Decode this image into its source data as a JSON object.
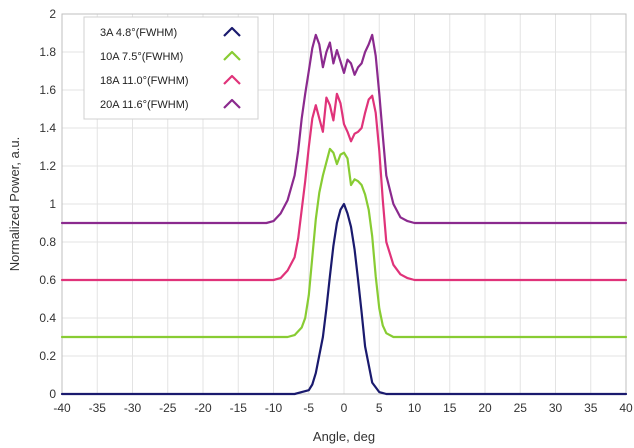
{
  "chart_data": {
    "type": "line",
    "title": "",
    "xlabel": "Angle, deg",
    "ylabel": "Normalized Power, a.u.",
    "xlim": [
      -40,
      40
    ],
    "ylim": [
      0,
      2
    ],
    "xticks": [
      -40,
      -35,
      -30,
      -25,
      -20,
      -15,
      -10,
      -5,
      0,
      5,
      10,
      15,
      20,
      25,
      30,
      35,
      40
    ],
    "yticks": [
      0,
      0.2,
      0.4,
      0.6,
      0.8,
      1,
      1.2,
      1.4,
      1.6,
      1.8,
      2
    ],
    "grid": true,
    "legend_position": "top-left",
    "series": [
      {
        "name": "3A 4.8°(FWHM)",
        "color": "#1a1a6e",
        "x": [
          -40,
          -7,
          -6,
          -5,
          -4.5,
          -4,
          -3,
          -2.5,
          -2,
          -1.5,
          -1,
          -0.5,
          0,
          0.5,
          1,
          1.5,
          2,
          2.5,
          3,
          4,
          5,
          6,
          40
        ],
        "y": [
          0.0,
          0.0,
          0.01,
          0.02,
          0.05,
          0.11,
          0.3,
          0.45,
          0.62,
          0.78,
          0.9,
          0.97,
          1.0,
          0.95,
          0.88,
          0.76,
          0.6,
          0.43,
          0.25,
          0.06,
          0.01,
          0.0,
          0.0
        ]
      },
      {
        "name": "10A 7.5°(FWHM)",
        "color": "#88cc33",
        "x": [
          -40,
          -8,
          -7,
          -6,
          -5.5,
          -5,
          -4.5,
          -4,
          -3.5,
          -3,
          -2.5,
          -2,
          -1.5,
          -1,
          -0.5,
          0,
          0.5,
          1,
          1.5,
          2,
          2.5,
          3,
          3.5,
          4,
          4.5,
          5,
          5.5,
          6,
          7,
          8,
          40
        ],
        "y": [
          0.3,
          0.3,
          0.31,
          0.35,
          0.4,
          0.52,
          0.72,
          0.92,
          1.06,
          1.15,
          1.22,
          1.29,
          1.27,
          1.21,
          1.26,
          1.27,
          1.24,
          1.1,
          1.13,
          1.12,
          1.1,
          1.05,
          0.97,
          0.83,
          0.62,
          0.45,
          0.36,
          0.32,
          0.3,
          0.3,
          0.3
        ]
      },
      {
        "name": "18A 11.0°(FWHM)",
        "color": "#e0337a",
        "x": [
          -40,
          -10,
          -9,
          -8,
          -7,
          -6.5,
          -6,
          -5.5,
          -5,
          -4.5,
          -4,
          -3.5,
          -3,
          -2.5,
          -2,
          -1.5,
          -1,
          -0.5,
          0,
          0.5,
          1,
          1.5,
          2,
          2.5,
          3,
          3.5,
          4,
          4.5,
          5,
          5.5,
          6,
          7,
          8,
          9,
          10,
          40
        ],
        "y": [
          0.6,
          0.6,
          0.61,
          0.65,
          0.72,
          0.82,
          0.97,
          1.12,
          1.3,
          1.45,
          1.52,
          1.45,
          1.38,
          1.56,
          1.52,
          1.44,
          1.58,
          1.53,
          1.42,
          1.38,
          1.33,
          1.37,
          1.38,
          1.4,
          1.48,
          1.55,
          1.57,
          1.48,
          1.28,
          1.02,
          0.8,
          0.68,
          0.63,
          0.61,
          0.6,
          0.6
        ]
      },
      {
        "name": "20A 11.6°(FWHM)",
        "color": "#8b2a8e",
        "x": [
          -40,
          -11,
          -10,
          -9,
          -8,
          -7,
          -6.5,
          -6,
          -5.5,
          -5,
          -4.5,
          -4,
          -3.5,
          -3,
          -2.5,
          -2,
          -1.5,
          -1,
          -0.5,
          0,
          0.5,
          1,
          1.5,
          2,
          2.5,
          3,
          3.5,
          4,
          4.5,
          5,
          5.5,
          6,
          7,
          8,
          9,
          10,
          11,
          40
        ],
        "y": [
          0.9,
          0.9,
          0.91,
          0.95,
          1.02,
          1.15,
          1.28,
          1.45,
          1.58,
          1.7,
          1.82,
          1.89,
          1.84,
          1.72,
          1.8,
          1.85,
          1.74,
          1.81,
          1.75,
          1.69,
          1.76,
          1.74,
          1.68,
          1.72,
          1.74,
          1.8,
          1.84,
          1.89,
          1.78,
          1.58,
          1.36,
          1.15,
          1.0,
          0.93,
          0.91,
          0.9,
          0.9,
          0.9
        ]
      }
    ]
  }
}
